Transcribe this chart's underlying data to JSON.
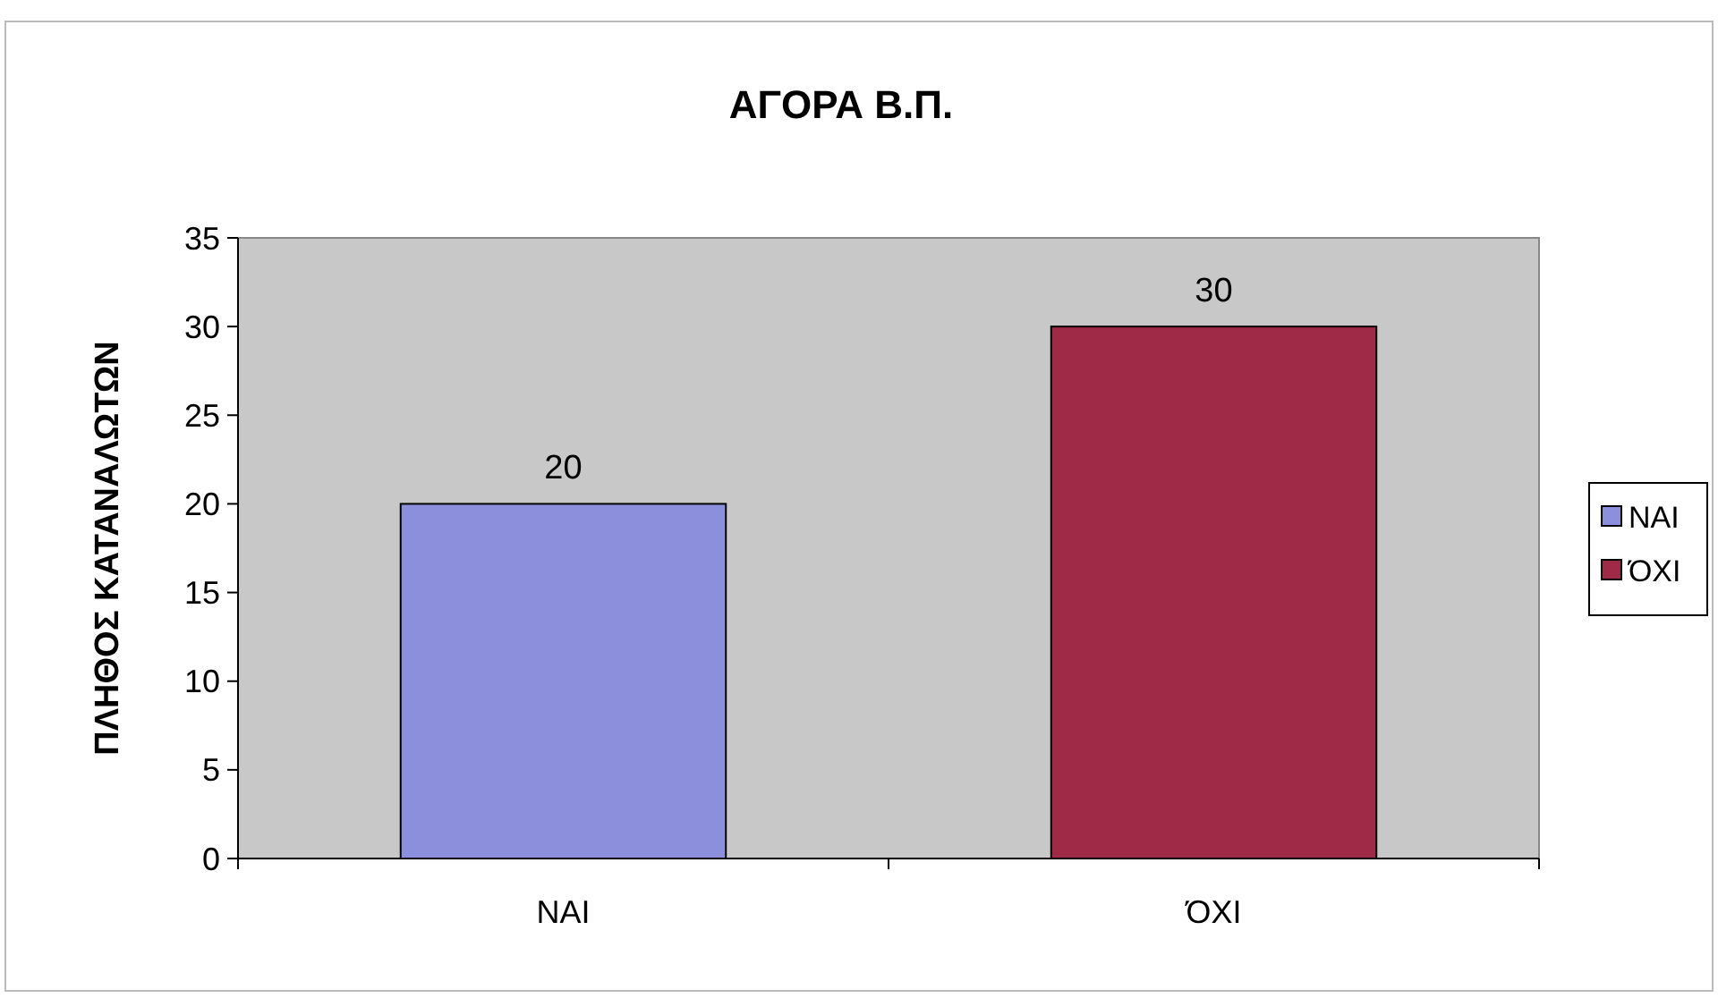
{
  "chart_data": {
    "type": "bar",
    "title": "ΑΓΟΡΑ Β.Π.",
    "ylabel": "ΠΛΗΘΟΣ ΚΑΤΑΝΑΛΩΤΩΝ",
    "categories": [
      "ΝΑΙ",
      "ΌΧΙ"
    ],
    "stacked": true,
    "series": [
      {
        "name": "ΝΑΙ",
        "color": "#8c8fdc",
        "values": [
          20,
          null
        ]
      },
      {
        "name": "ΌΧΙ",
        "color": "#9e2a48",
        "values": [
          null,
          30
        ]
      }
    ],
    "ylim": [
      0,
      35
    ],
    "yticks": [
      0,
      5,
      10,
      15,
      20,
      25,
      30,
      35
    ],
    "data_labels": true,
    "legend": "right",
    "grid": false
  }
}
